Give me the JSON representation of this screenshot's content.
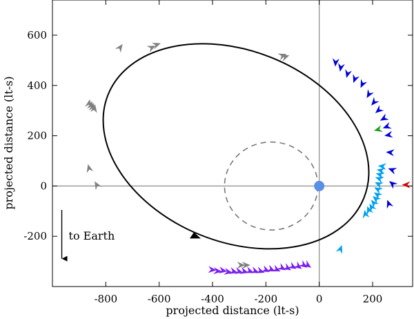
{
  "chart_data": {
    "type": "scatter",
    "title": "",
    "xlabel": "projected distance (lt-s)",
    "ylabel": "projected distance (lt-s)",
    "xlim": [
      -1000,
      350
    ],
    "ylim": [
      -400,
      740
    ],
    "x_ticks": [
      -800,
      -600,
      -400,
      -200,
      0,
      200
    ],
    "x_tick_labels": [
      "-800",
      "-600",
      "-400",
      "-200",
      "0",
      "200"
    ],
    "y_ticks": [
      -200,
      0,
      200,
      400,
      600
    ],
    "y_tick_labels": [
      "-200",
      "0",
      "200",
      "400",
      "600"
    ],
    "zero_lines": true,
    "grid": false,
    "orbit": {
      "type": "ellipse",
      "center": [
        -312,
        158
      ],
      "semi_major": 517,
      "semi_minor": 380,
      "rotation_deg": -22,
      "direction_marker_at": [
        -475,
        -195
      ],
      "color": "#000000"
    },
    "reference_circle": {
      "center": [
        -180,
        0
      ],
      "radius": 175,
      "style": "dashed",
      "color": "#777777"
    },
    "focus_point": {
      "x": 0,
      "y": 0,
      "color": "#5b8ee6"
    },
    "annotation": {
      "text": "to Earth",
      "arrow_from": [
        -965,
        -95
      ],
      "arrow_to": [
        -965,
        -300
      ]
    },
    "series": [
      {
        "color": "#808080",
        "points": [
          {
            "x": -860,
            "y": 345,
            "angle": 190
          },
          {
            "x": -852,
            "y": 338,
            "angle": 190
          },
          {
            "x": -846,
            "y": 331,
            "angle": 190
          },
          {
            "x": -840,
            "y": 325,
            "angle": 190
          },
          {
            "x": -737,
            "y": 565,
            "angle": 215
          },
          {
            "x": -613,
            "y": 558,
            "angle": 245
          },
          {
            "x": -594,
            "y": 568,
            "angle": 250
          },
          {
            "x": -112,
            "y": 520,
            "angle": 250
          },
          {
            "x": -122,
            "y": 525,
            "angle": 250
          },
          {
            "x": -867,
            "y": 87,
            "angle": 165
          },
          {
            "x": -842,
            "y": 19,
            "angle": 150
          },
          {
            "x": -277,
            "y": -315,
            "angle": 270
          },
          {
            "x": -258,
            "y": -315,
            "angle": 270
          }
        ]
      },
      {
        "color": "#0000e0",
        "points": [
          {
            "x": 60,
            "y": 475,
            "angle": 5
          },
          {
            "x": 78,
            "y": 455,
            "angle": 10
          },
          {
            "x": 102,
            "y": 430,
            "angle": 15
          },
          {
            "x": 128,
            "y": 410,
            "angle": 20
          },
          {
            "x": 155,
            "y": 390,
            "angle": 25
          },
          {
            "x": 178,
            "y": 350,
            "angle": 30
          },
          {
            "x": 195,
            "y": 320,
            "angle": 40
          },
          {
            "x": 210,
            "y": 290,
            "angle": 50
          },
          {
            "x": 228,
            "y": 260,
            "angle": 60
          },
          {
            "x": 238,
            "y": 230,
            "angle": 70
          },
          {
            "x": 244,
            "y": 200,
            "angle": 80
          },
          {
            "x": 250,
            "y": 135,
            "angle": 95
          },
          {
            "x": 258,
            "y": 70,
            "angle": 110
          },
          {
            "x": 262,
            "y": 20,
            "angle": 130
          },
          {
            "x": 255,
            "y": -55,
            "angle": 160
          }
        ]
      },
      {
        "color": "#00a0f0",
        "points": [
          {
            "x": 220,
            "y": 80,
            "angle": 95
          },
          {
            "x": 215,
            "y": 65,
            "angle": 100
          },
          {
            "x": 212,
            "y": 50,
            "angle": 105
          },
          {
            "x": 210,
            "y": 35,
            "angle": 110
          },
          {
            "x": 208,
            "y": 15,
            "angle": 115
          },
          {
            "x": 206,
            "y": -5,
            "angle": 120
          },
          {
            "x": 205,
            "y": -25,
            "angle": 125
          },
          {
            "x": 200,
            "y": -40,
            "angle": 130
          },
          {
            "x": 194,
            "y": -55,
            "angle": 140
          },
          {
            "x": 188,
            "y": -70,
            "angle": 150
          },
          {
            "x": 180,
            "y": -80,
            "angle": 160
          },
          {
            "x": 170,
            "y": -95,
            "angle": 170
          },
          {
            "x": 85,
            "y": -235,
            "angle": 200
          }
        ]
      },
      {
        "color": "#7a1ff0",
        "points": [
          {
            "x": -385,
            "y": -335,
            "angle": 275
          },
          {
            "x": -365,
            "y": -340,
            "angle": 275
          },
          {
            "x": -345,
            "y": -340,
            "angle": 280
          },
          {
            "x": -325,
            "y": -345,
            "angle": 280
          },
          {
            "x": -305,
            "y": -345,
            "angle": 285
          },
          {
            "x": -285,
            "y": -345,
            "angle": 285
          },
          {
            "x": -265,
            "y": -345,
            "angle": 285
          },
          {
            "x": -245,
            "y": -345,
            "angle": 290
          },
          {
            "x": -225,
            "y": -345,
            "angle": 290
          },
          {
            "x": -205,
            "y": -345,
            "angle": 290
          },
          {
            "x": -185,
            "y": -342,
            "angle": 295
          },
          {
            "x": -165,
            "y": -340,
            "angle": 295
          },
          {
            "x": -145,
            "y": -340,
            "angle": 295
          },
          {
            "x": -125,
            "y": -335,
            "angle": 300
          },
          {
            "x": -105,
            "y": -335,
            "angle": 300
          },
          {
            "x": -85,
            "y": -330,
            "angle": 300
          },
          {
            "x": -65,
            "y": -330,
            "angle": 305
          },
          {
            "x": -45,
            "y": -325,
            "angle": 305
          },
          {
            "x": -30,
            "y": -325,
            "angle": 305
          }
        ]
      },
      {
        "color": "#1aa01a",
        "points": [
          {
            "x": 205,
            "y": 220,
            "angle": 75
          }
        ]
      },
      {
        "color": "#e00000",
        "points": [
          {
            "x": 310,
            "y": 5,
            "angle": 90
          }
        ]
      }
    ]
  }
}
